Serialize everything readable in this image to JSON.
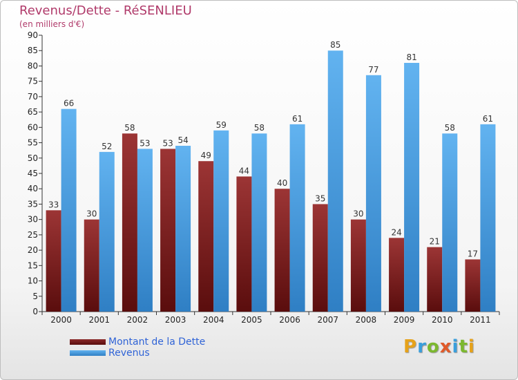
{
  "chart_data": {
    "type": "bar",
    "title": "Revenus/Dette - RéSENLIEU",
    "subtitle": "(en milliers d'€)",
    "categories": [
      "2000",
      "2001",
      "2002",
      "2003",
      "2004",
      "2005",
      "2006",
      "2007",
      "2008",
      "2009",
      "2010",
      "2011"
    ],
    "series": [
      {
        "name": "Montant de la Dette",
        "values": [
          33,
          30,
          58,
          53,
          49,
          44,
          40,
          35,
          30,
          24,
          21,
          17
        ],
        "color": "#7a1c1c"
      },
      {
        "name": "Revenus",
        "values": [
          66,
          52,
          53,
          54,
          59,
          58,
          61,
          85,
          77,
          81,
          58,
          61
        ],
        "color": "#4a9fe3"
      }
    ],
    "ylim": [
      0,
      90
    ],
    "yticks": [
      0,
      5,
      10,
      15,
      20,
      25,
      30,
      35,
      40,
      45,
      50,
      55,
      60,
      65,
      70,
      75,
      80,
      85,
      90
    ],
    "grid": false,
    "legend_position": "bottom-left"
  },
  "brand": {
    "letters": [
      "P",
      "r",
      "o",
      "x",
      "i",
      "t",
      "i"
    ],
    "letter_colors": [
      "#e6a21a",
      "#3a9fdc",
      "#7cb82f",
      "#e05a2a",
      "#3a9fdc",
      "#7cb82f",
      "#e6a21a"
    ]
  }
}
